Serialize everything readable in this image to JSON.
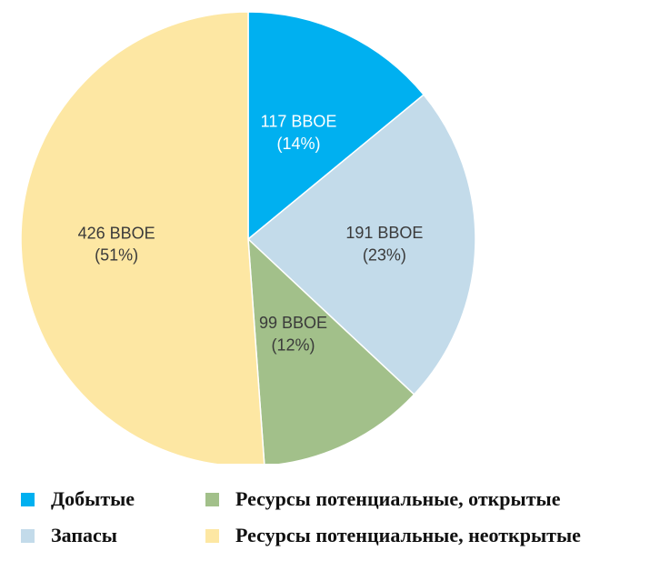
{
  "chart_data": {
    "type": "pie",
    "start_angle_deg": 0,
    "direction": "clockwise",
    "slices": [
      {
        "legend": "Добытые",
        "value": 117,
        "line1": "117 BBOE",
        "line2": "(14%)",
        "color": "#00b0f0",
        "label_color": "#ffffff"
      },
      {
        "legend": "Запасы",
        "value": 191,
        "line1": "191 BBOE",
        "line2": "(23%)",
        "color": "#c3dbea",
        "label_color": "#3a3a3a"
      },
      {
        "legend": "Ресурсы потенциальные, открытые",
        "value": 99,
        "line1": "99 BBOE",
        "line2": "(12%)",
        "color": "#a2c08a",
        "label_color": "#3a3a3a"
      },
      {
        "legend": "Ресурсы потенциальные, неоткрытые",
        "value": 426,
        "line1": "426 BBOE",
        "line2": "(51%)",
        "color": "#fde7a3",
        "label_color": "#3a3a3a"
      }
    ]
  }
}
